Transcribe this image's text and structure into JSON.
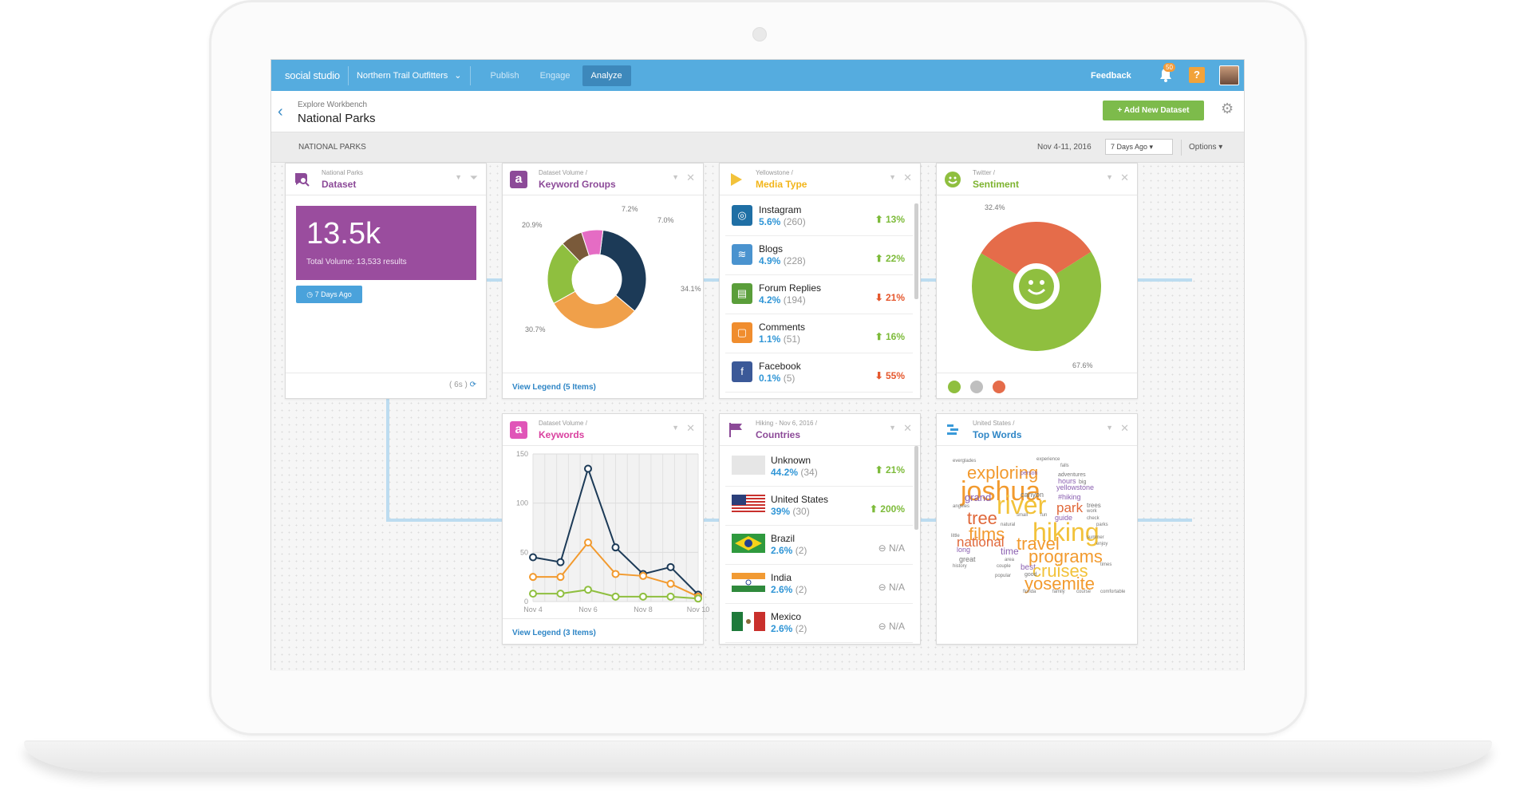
{
  "app": {
    "brand": "social studio",
    "account": "Northern Trail Outfitters",
    "tabs": [
      {
        "label": "Publish"
      },
      {
        "label": "Engage"
      },
      {
        "label": "Analyze"
      }
    ],
    "feedback": "Feedback",
    "notifications": "50",
    "help": "?"
  },
  "header": {
    "breadcrumb": "Explore Workbench",
    "title": "National Parks",
    "add_button": "+ Add New Dataset"
  },
  "subbar": {
    "label": "NATIONAL PARKS",
    "date_range": "Nov 4-11, 2016",
    "range_select": "7 Days Ago",
    "options": "Options"
  },
  "cards": {
    "dataset": {
      "subtitle": "National Parks",
      "title": "Dataset",
      "volume": "13.5k",
      "volume_caption": "Total Volume: 13,533 results",
      "days_button": "7 Days Ago",
      "refresh": "( 6s )"
    },
    "keyword_groups": {
      "subtitle": "Dataset Volume /",
      "title": "Keyword Groups",
      "legend": "View Legend (5 Items)"
    },
    "media_type": {
      "subtitle": "Yellowstone /",
      "title": "Media Type",
      "rows": [
        {
          "name": "Instagram",
          "pct": "5.6%",
          "count": "(260)",
          "change": "13%",
          "dir": "up",
          "color": "#1f6fa5",
          "icon": "instagram-icon",
          "glyph": "◎"
        },
        {
          "name": "Blogs",
          "pct": "4.9%",
          "count": "(228)",
          "change": "22%",
          "dir": "up",
          "color": "#4a93cf",
          "icon": "blog-icon",
          "glyph": "≋"
        },
        {
          "name": "Forum Replies",
          "pct": "4.2%",
          "count": "(194)",
          "change": "21%",
          "dir": "down",
          "color": "#5a9e3a",
          "icon": "forum-icon",
          "glyph": "▤"
        },
        {
          "name": "Comments",
          "pct": "1.1%",
          "count": "(51)",
          "change": "16%",
          "dir": "up",
          "color": "#f08d2e",
          "icon": "comment-icon",
          "glyph": "▢"
        },
        {
          "name": "Facebook",
          "pct": "0.1%",
          "count": "(5)",
          "change": "55%",
          "dir": "down",
          "color": "#3b5998",
          "icon": "facebook-icon",
          "glyph": "f"
        }
      ]
    },
    "sentiment": {
      "subtitle": "Twitter /",
      "title": "Sentiment"
    },
    "keywords": {
      "subtitle": "Dataset Volume /",
      "title": "Keywords",
      "legend": "View Legend (3 Items)"
    },
    "countries": {
      "subtitle": "Hiking - Nov 6, 2016 /",
      "title": "Countries",
      "rows": [
        {
          "name": "Unknown",
          "pct": "44.2%",
          "count": "(34)",
          "change": "21%",
          "dir": "up",
          "flag": "none"
        },
        {
          "name": "United States",
          "pct": "39%",
          "count": "(30)",
          "change": "200%",
          "dir": "up",
          "flag": "us"
        },
        {
          "name": "Brazil",
          "pct": "2.6%",
          "count": "(2)",
          "change": "N/A",
          "dir": "na",
          "flag": "br"
        },
        {
          "name": "India",
          "pct": "2.6%",
          "count": "(2)",
          "change": "N/A",
          "dir": "na",
          "flag": "in"
        },
        {
          "name": "Mexico",
          "pct": "2.6%",
          "count": "(2)",
          "change": "N/A",
          "dir": "na",
          "flag": "mx"
        }
      ]
    },
    "top_words": {
      "subtitle": "United States /",
      "title": "Top Words",
      "words": [
        {
          "t": "everglades",
          "c": "#777",
          "s": 6
        },
        {
          "t": "experience",
          "c": "#777",
          "s": 6
        },
        {
          "t": "exploring",
          "c": "#f29a2e",
          "s": 22
        },
        {
          "t": "person",
          "c": "#8a5fb0",
          "s": 7
        },
        {
          "t": "falls",
          "c": "#777",
          "s": 6
        },
        {
          "t": "adventures",
          "c": "#777",
          "s": 7
        },
        {
          "t": "joshua",
          "c": "#f29a2e",
          "s": 34
        },
        {
          "t": "hours",
          "c": "#8a5fb0",
          "s": 9
        },
        {
          "t": "big",
          "c": "#777",
          "s": 7
        },
        {
          "t": "yellowstone",
          "c": "#8a5fb0",
          "s": 9
        },
        {
          "t": "grand",
          "c": "#8a5fb0",
          "s": 13
        },
        {
          "t": "canyon",
          "c": "#777",
          "s": 9
        },
        {
          "t": "#hiking",
          "c": "#8a5fb0",
          "s": 9
        },
        {
          "t": "trees",
          "c": "#777",
          "s": 8
        },
        {
          "t": "angeles",
          "c": "#777",
          "s": 6
        },
        {
          "t": "river",
          "c": "#f2c23a",
          "s": 32
        },
        {
          "t": "park",
          "c": "#e0683a",
          "s": 17
        },
        {
          "t": "work",
          "c": "#777",
          "s": 6
        },
        {
          "t": "tree",
          "c": "#e0683a",
          "s": 22
        },
        {
          "t": "small",
          "c": "#777",
          "s": 6
        },
        {
          "t": "fun",
          "c": "#777",
          "s": 6
        },
        {
          "t": "guide",
          "c": "#8a5fb0",
          "s": 9
        },
        {
          "t": "check",
          "c": "#777",
          "s": 6
        },
        {
          "t": "parks",
          "c": "#777",
          "s": 6
        },
        {
          "t": "natural",
          "c": "#777",
          "s": 6
        },
        {
          "t": "hiking",
          "c": "#f2c23a",
          "s": 32
        },
        {
          "t": "films",
          "c": "#f29a2e",
          "s": 22
        },
        {
          "t": "little",
          "c": "#777",
          "s": 6
        },
        {
          "t": "national",
          "c": "#e0683a",
          "s": 17
        },
        {
          "t": "travel",
          "c": "#f29a2e",
          "s": 22
        },
        {
          "t": "summer",
          "c": "#777",
          "s": 6
        },
        {
          "t": "enjoy",
          "c": "#777",
          "s": 6
        },
        {
          "t": "long",
          "c": "#8a5fb0",
          "s": 9
        },
        {
          "t": "time",
          "c": "#8a5fb0",
          "s": 12
        },
        {
          "t": "programs",
          "c": "#f29a2e",
          "s": 22
        },
        {
          "t": "great",
          "c": "#777",
          "s": 9
        },
        {
          "t": "area",
          "c": "#777",
          "s": 6
        },
        {
          "t": "history",
          "c": "#777",
          "s": 6
        },
        {
          "t": "couple",
          "c": "#777",
          "s": 6
        },
        {
          "t": "best",
          "c": "#8a5fb0",
          "s": 10
        },
        {
          "t": "cruises",
          "c": "#f2c23a",
          "s": 22
        },
        {
          "t": "times",
          "c": "#777",
          "s": 6
        },
        {
          "t": "popular",
          "c": "#777",
          "s": 6
        },
        {
          "t": "good",
          "c": "#777",
          "s": 7
        },
        {
          "t": "yosemite",
          "c": "#f29a2e",
          "s": 22
        },
        {
          "t": "florida",
          "c": "#777",
          "s": 6
        },
        {
          "t": "family",
          "c": "#777",
          "s": 6
        },
        {
          "t": "course",
          "c": "#777",
          "s": 6
        },
        {
          "t": "comfortable",
          "c": "#777",
          "s": 6
        }
      ]
    }
  },
  "chart_data": [
    {
      "type": "pie",
      "title": "Keyword Groups",
      "series": [
        {
          "values": [
            34.1,
            30.7,
            20.9,
            7.2,
            7.0
          ],
          "labels": [
            "34.1",
            "30.7",
            "20.9",
            "7.2",
            "7.0"
          ],
          "colors": [
            "#1c3a57",
            "#f0a04a",
            "#8fbf3f",
            "#7a5a3a",
            "#e56cc4"
          ]
        }
      ]
    },
    {
      "type": "pie",
      "title": "Sentiment",
      "series": [
        {
          "values": [
            67.6,
            32.4
          ],
          "labels": [
            "67.6",
            "32.4"
          ],
          "colors": [
            "#8fbf3f",
            "#e56c4a"
          ]
        }
      ]
    },
    {
      "type": "line",
      "title": "Keywords",
      "categories": [
        "Nov 4",
        "Nov 5",
        "Nov 6",
        "Nov 7",
        "Nov 8",
        "Nov 9",
        "Nov 10"
      ],
      "x_ticks": [
        "Nov 4",
        "Nov 6",
        "Nov 8",
        "Nov 10"
      ],
      "ylim": [
        0,
        150
      ],
      "y_ticks": [
        "0",
        "50",
        "100",
        "150"
      ],
      "series": [
        {
          "color": "#1c3a57",
          "values": [
            45,
            40,
            135,
            55,
            28,
            35,
            7
          ]
        },
        {
          "color": "#f29a2e",
          "values": [
            25,
            25,
            60,
            28,
            26,
            18,
            5
          ]
        },
        {
          "color": "#8fbf3f",
          "values": [
            8,
            8,
            12,
            5,
            5,
            5,
            3
          ]
        }
      ]
    }
  ]
}
